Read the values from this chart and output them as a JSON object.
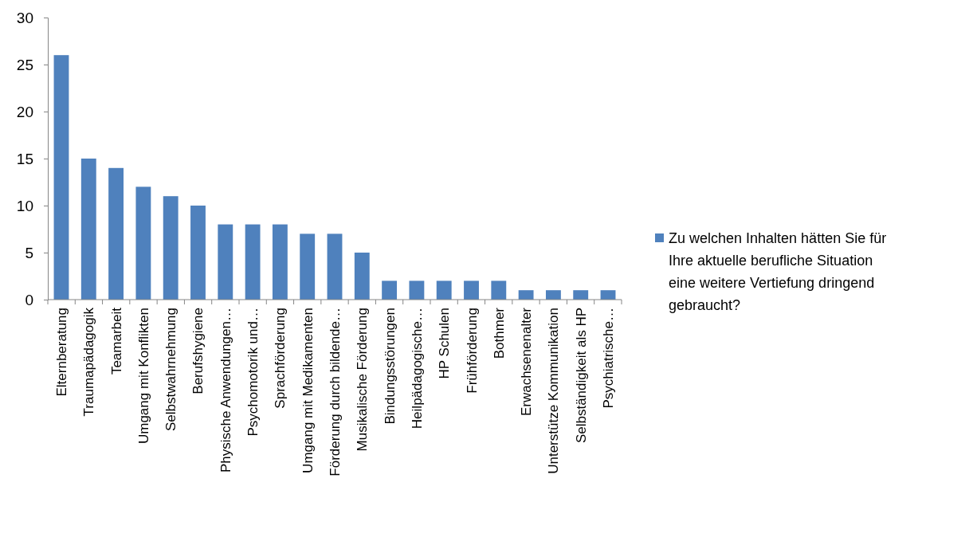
{
  "chart_data": {
    "type": "bar",
    "categories": [
      "Elternberatung",
      "Traumapädagogik",
      "Teamarbeit",
      "Umgang mit Konflikten",
      "Selbstwahrnehmung",
      "Berufshygiene",
      "Physische Anwendungen…",
      "Psychomotorik und…",
      "Sprachförderung",
      "Umgang mit Medikamenten",
      "Förderung durch bildende…",
      "Musikalische Förderung",
      "Bindungsstörungen",
      "Heilpädagogische…",
      "HP Schulen",
      "Frühförderung",
      "Bothmer",
      "Erwachsenenalter",
      "Unterstütze Kommunikation",
      "Selbständigkeit als HP",
      "Psychiatrische…"
    ],
    "series": [
      {
        "name": "Zu welchen Inhalten hätten Sie für Ihre aktuelle berufliche Situation eine weitere Vertiefung dringend gebraucht?",
        "color": "#4f81bd",
        "values": [
          26,
          15,
          14,
          12,
          11,
          10,
          8,
          8,
          8,
          7,
          7,
          5,
          2,
          2,
          2,
          2,
          2,
          1,
          1,
          1,
          1
        ]
      }
    ],
    "ylim": [
      0,
      30
    ],
    "yticks": [
      0,
      5,
      10,
      15,
      20,
      25,
      30
    ],
    "grid": false,
    "legend": "right"
  }
}
